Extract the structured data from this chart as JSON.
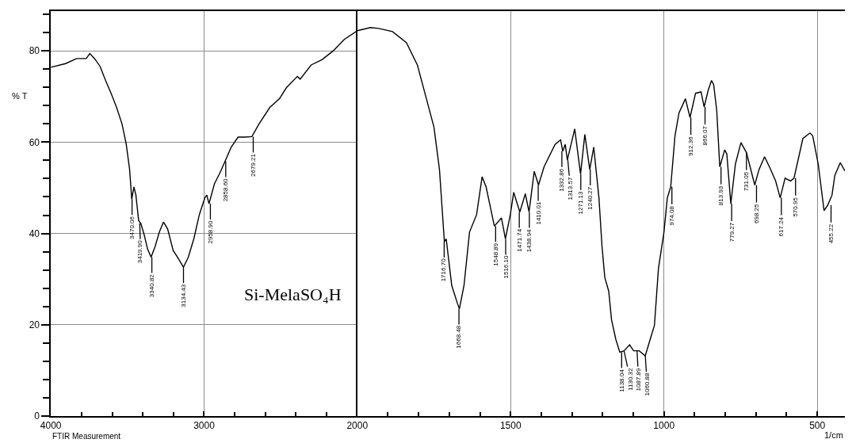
{
  "chart_data": [
    {
      "type": "line",
      "ylabel": "% T",
      "grid": true,
      "marker": "none",
      "line_style": "solid",
      "xlim": [
        4000,
        2000
      ],
      "xticks": [
        4000,
        {
          "value": 3800,
          "label": null
        },
        {
          "value": 3600,
          "label": null
        },
        {
          "value": 3400,
          "label": null
        },
        {
          "value": 3200,
          "label": null
        },
        3000,
        {
          "value": 2800,
          "label": null
        },
        {
          "value": 2600,
          "label": null
        },
        {
          "value": 2400,
          "label": null
        },
        {
          "value": 2200,
          "label": null
        },
        2000
      ],
      "ylim": [
        0,
        88.7
      ],
      "yticks": [
        0,
        {
          "value": 4,
          "label": null
        },
        {
          "value": 8,
          "label": null
        },
        {
          "value": 12,
          "label": null
        },
        {
          "value": 16,
          "label": null
        },
        20,
        {
          "value": 24,
          "label": null
        },
        {
          "value": 28,
          "label": null
        },
        {
          "value": 32,
          "label": null
        },
        {
          "value": 36,
          "label": null
        },
        40,
        {
          "value": 44,
          "label": null
        },
        {
          "value": 48,
          "label": null
        },
        {
          "value": 52,
          "label": null
        },
        {
          "value": 56,
          "label": null
        },
        60,
        {
          "value": 64,
          "label": null
        },
        {
          "value": 68,
          "label": null
        },
        {
          "value": 72,
          "label": null
        },
        {
          "value": 76,
          "label": null
        },
        80,
        {
          "value": 84,
          "label": null
        },
        {
          "value": 88,
          "label": null
        }
      ],
      "series": [
        {
          "color": "#000000",
          "x": [
            4000,
            3904,
            3832,
            3769,
            3746,
            3715,
            3679,
            3643,
            3607,
            3571,
            3535,
            3508,
            3486,
            3472,
            3458,
            3445,
            3427,
            3413,
            3391,
            3369,
            3346,
            3319,
            3292,
            3265,
            3238,
            3202,
            3166,
            3135,
            3103,
            3067,
            3031,
            2995,
            2982,
            2968,
            2932,
            2896,
            2863,
            2823,
            2778,
            2733,
            2688,
            2643,
            2571,
            2508,
            2463,
            2391,
            2373,
            2301,
            2229,
            2157,
            2085,
            2000
          ],
          "values": [
            76.4,
            77.2,
            78.3,
            78.3,
            79.4,
            78.3,
            76.6,
            73.5,
            70.7,
            67.6,
            63.9,
            59.5,
            54.0,
            47.5,
            50.2,
            48.4,
            42.8,
            42.2,
            39.7,
            36.6,
            34.8,
            37.2,
            40.3,
            42.5,
            41.0,
            36.3,
            34.4,
            32.6,
            34.8,
            38.8,
            44.1,
            47.8,
            48.4,
            46.5,
            50.9,
            53.3,
            55.8,
            58.9,
            61.1,
            61.1,
            61.2,
            63.9,
            67.6,
            69.5,
            71.9,
            74.4,
            73.8,
            76.9,
            78.1,
            80.0,
            82.5,
            84.4
          ]
        }
      ],
      "annotations": [
        "Si-MelaSO₄H",
        "FTIR Measurement",
        {
          "text": "3470.06",
          "x": 3470.06,
          "y": 47.5
        },
        {
          "text": "3419.90",
          "x": 3419.9,
          "y": 42.2
        },
        {
          "text": "3340.82",
          "x": 3340.82,
          "y": 34.8
        },
        {
          "text": "3134.43",
          "x": 3134.43,
          "y": 32.6
        },
        {
          "text": "2958.90",
          "x": 2958.9,
          "y": 46.5
        },
        {
          "text": "2858.60",
          "x": 2858.6,
          "y": 55.8
        },
        {
          "text": "2679.21",
          "x": 2679.21,
          "y": 61.2
        }
      ]
    },
    {
      "type": "line",
      "xlabel": "1/cm",
      "grid": true,
      "marker": "none",
      "line_style": "solid",
      "tick_labels": "x",
      "xlim": [
        2000,
        410
      ],
      "xticks": [
        {
          "value": 2000,
          "label": null
        },
        {
          "value": 1900,
          "label": null
        },
        {
          "value": 1800,
          "label": null
        },
        {
          "value": 1700,
          "label": null
        },
        {
          "value": 1600,
          "label": null
        },
        1500,
        {
          "value": 1400,
          "label": null
        },
        {
          "value": 1300,
          "label": null
        },
        {
          "value": 1200,
          "label": null
        },
        {
          "value": 1100,
          "label": null
        },
        1000,
        {
          "value": 900,
          "label": null
        },
        {
          "value": 800,
          "label": null
        },
        {
          "value": 700,
          "label": null
        },
        {
          "value": 600,
          "label": null
        },
        500
      ],
      "ylim": [
        0,
        88.7
      ],
      "series": [
        {
          "color": "#000000",
          "x": [
            2000,
            1957,
            1930,
            1885,
            1840,
            1804,
            1777,
            1750,
            1732,
            1716,
            1710,
            1692,
            1674,
            1667,
            1652,
            1634,
            1611,
            1593,
            1580,
            1553,
            1530,
            1517,
            1501,
            1490,
            1470,
            1452,
            1440,
            1423,
            1409,
            1391,
            1355,
            1337,
            1330,
            1322,
            1315,
            1291,
            1272,
            1258,
            1242,
            1229,
            1212,
            1202,
            1193,
            1180,
            1171,
            1157,
            1144,
            1130,
            1112,
            1099,
            1081,
            1061,
            1045,
            1031,
            1018,
            1000,
            989,
            978,
            964,
            951,
            930,
            915,
            897,
            879,
            869,
            856,
            845,
            838,
            828,
            818,
            802,
            795,
            782,
            767,
            749,
            731,
            704,
            690,
            672,
            654,
            636,
            621,
            605,
            587,
            576,
            547,
            524,
            515,
            497,
            478,
            466,
            452,
            443,
            425,
            410
          ],
          "values": [
            84.4,
            85.1,
            84.9,
            84.2,
            81.8,
            76.9,
            70.1,
            63.3,
            54.0,
            38.2,
            38.8,
            28.6,
            24.8,
            23.5,
            28.6,
            40.3,
            44.1,
            52.4,
            50.2,
            41.6,
            43.4,
            38.8,
            44.1,
            49.0,
            44.7,
            48.7,
            44.7,
            53.6,
            50.6,
            54.6,
            59.5,
            60.5,
            58.0,
            59.5,
            56.1,
            62.9,
            53.0,
            61.7,
            54.0,
            58.9,
            47.8,
            37.2,
            30.4,
            27.3,
            21.1,
            16.8,
            14.0,
            14.3,
            15.6,
            14.3,
            14.3,
            13.2,
            16.8,
            19.9,
            32.3,
            40.3,
            47.8,
            50.2,
            61.4,
            66.4,
            69.5,
            65.4,
            70.7,
            71.0,
            67.7,
            71.3,
            73.5,
            72.6,
            67.0,
            54.6,
            58.3,
            57.4,
            46.5,
            55.2,
            59.9,
            57.7,
            50.6,
            54.0,
            56.8,
            54.3,
            51.5,
            47.8,
            52.1,
            51.5,
            52.1,
            60.8,
            62.0,
            61.4,
            55.2,
            45.0,
            46.2,
            48.4,
            52.7,
            55.5,
            53.7
          ]
        }
      ],
      "annotations": [
        {
          "text": "1716.70",
          "x": 1716.7,
          "y": 38.2
        },
        {
          "text": "1668.48",
          "x": 1668.48,
          "y": 23.5
        },
        {
          "text": "1548.89",
          "x": 1548.89,
          "y": 41.6
        },
        {
          "text": "1516.10",
          "x": 1516.1,
          "y": 38.8
        },
        {
          "text": "1471.74",
          "x": 1471.74,
          "y": 44.7
        },
        {
          "text": "1438.94",
          "x": 1438.94,
          "y": 44.7
        },
        {
          "text": "1410.01",
          "x": 1410.01,
          "y": 50.6
        },
        {
          "text": "1332.86",
          "x": 1332.86,
          "y": 58.0
        },
        {
          "text": "1313.57",
          "x": 1313.57,
          "y": 56.1
        },
        {
          "text": "1271.13",
          "x": 1271.13,
          "y": 53.0
        },
        {
          "text": "1240.27",
          "x": 1240.27,
          "y": 54.0
        },
        {
          "text": "1138.04",
          "x": 1138.04,
          "y": 14.0
        },
        {
          "text": "1130.32",
          "x": 1130.32,
          "y": 14.3
        },
        {
          "text": "1087.89",
          "x": 1087.89,
          "y": 14.3
        },
        {
          "text": "1060.88",
          "x": 1060.88,
          "y": 13.2
        },
        {
          "text": "974.08",
          "x": 974.08,
          "y": 50.2
        },
        {
          "text": "912.36",
          "x": 912.36,
          "y": 65.4
        },
        {
          "text": "866.07",
          "x": 866.07,
          "y": 67.7
        },
        {
          "text": "813.93",
          "x": 813.93,
          "y": 54.6
        },
        {
          "text": "779.27",
          "x": 779.27,
          "y": 46.5
        },
        {
          "text": "731.05",
          "x": 731.05,
          "y": 57.7
        },
        {
          "text": "698.25",
          "x": 698.25,
          "y": 50.6
        },
        {
          "text": "617.24",
          "x": 617.24,
          "y": 47.8
        },
        {
          "text": "570.95",
          "x": 570.95,
          "y": 52.1
        },
        {
          "text": "455.22",
          "x": 455.22,
          "y": 46.2
        }
      ]
    }
  ]
}
